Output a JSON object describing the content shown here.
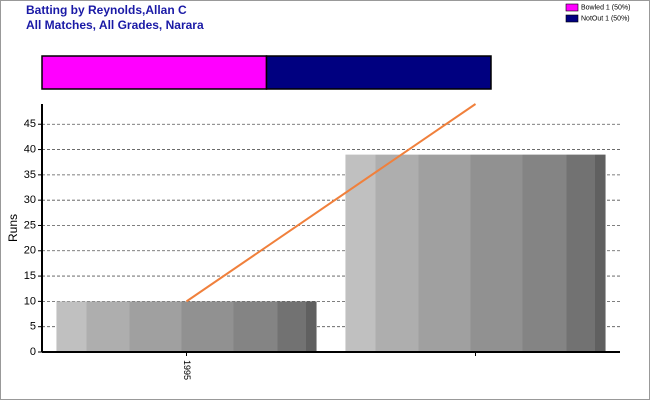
{
  "header": {
    "title": [
      "Batting by Reynolds,Allan C",
      "All Matches, All Grades, Narara"
    ]
  },
  "chart_data": [
    {
      "type": "stacked-bar",
      "xlim": [
        0,
        2
      ],
      "series": [
        {
          "name": "Bowled 1 (50%)",
          "color": "#ff00ff",
          "values": [
            1
          ]
        },
        {
          "name": "NotOut 1 (50%)",
          "color": "#000080",
          "values": [
            1
          ]
        }
      ]
    },
    {
      "type": "bar-line",
      "y_label": "Runs",
      "categories": [
        "1995",
        null
      ],
      "series": [
        {
          "kind": "bar",
          "color": "#999999",
          "values": [
            10,
            39
          ]
        },
        {
          "kind": "line",
          "color": "#f0803c",
          "values": [
            10,
            49
          ]
        }
      ],
      "ylim": [
        0,
        49
      ],
      "yticks": [
        0,
        5,
        10,
        15,
        20,
        25,
        30,
        35,
        40,
        45
      ],
      "grid": true
    }
  ]
}
